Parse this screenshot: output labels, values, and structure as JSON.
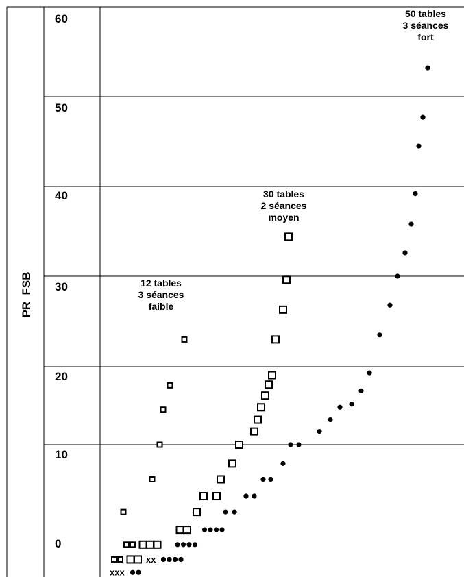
{
  "chart_data": {
    "type": "scatter",
    "ylabel": "PR  FSB",
    "y_ticks": [
      "0",
      "10",
      "20",
      "30",
      "40",
      "50",
      "60"
    ],
    "ylim": [
      -3,
      62
    ],
    "grid": true,
    "annotations": [
      {
        "lines": [
          "12 tables",
          "3 séances",
          "faible"
        ]
      },
      {
        "lines": [
          "30 tables",
          "2 séances",
          "moyen"
        ]
      },
      {
        "lines": [
          "50 tables",
          "3 séances",
          "fort"
        ]
      }
    ],
    "rows": [
      {
        "y": -2.6,
        "items": [
          {
            "kind": "text",
            "value": "xxx"
          },
          {
            "kind": "dot",
            "count": 2
          }
        ]
      },
      {
        "y": -1.3,
        "items": [
          {
            "kind": "small",
            "count": 2
          },
          {
            "kind": "square",
            "count": 2
          },
          {
            "kind": "text",
            "value": "xx"
          },
          {
            "kind": "dot",
            "count": 4
          }
        ]
      },
      {
        "y": 0.2,
        "items": [
          {
            "kind": "small",
            "count": 2
          },
          {
            "kind": "square",
            "count": 3
          },
          {
            "kind": "dot",
            "count": 4
          }
        ]
      },
      {
        "y": 1.7,
        "items": [
          {
            "kind": "square",
            "count": 2
          },
          {
            "kind": "dot",
            "count": 4
          }
        ]
      }
    ],
    "series": [
      {
        "marker": "small-square",
        "points": [
          [
            180,
            3.5
          ],
          [
            222,
            6.8
          ],
          [
            233,
            10.0
          ],
          [
            238,
            14.5
          ],
          [
            248,
            17.6
          ],
          [
            269,
            23.0
          ]
        ]
      },
      {
        "marker": "square",
        "points": [
          [
            287,
            3.5
          ],
          [
            297,
            5.1
          ],
          [
            316,
            5.1
          ],
          [
            322,
            6.8
          ],
          [
            339,
            8.4
          ],
          [
            349,
            10.0
          ],
          [
            371,
            11.7
          ],
          [
            376,
            13.2
          ],
          [
            381,
            14.8
          ],
          [
            387,
            16.3
          ],
          [
            392,
            17.7
          ],
          [
            397,
            18.9
          ],
          [
            402,
            23.0
          ],
          [
            413,
            26.3
          ],
          [
            418,
            29.6
          ],
          [
            421,
            34.4
          ]
        ]
      },
      {
        "marker": "dot",
        "points": [
          [
            329,
            3.5
          ],
          [
            342,
            3.5
          ],
          [
            359,
            5.1
          ],
          [
            371,
            5.1
          ],
          [
            384,
            6.8
          ],
          [
            395,
            6.8
          ],
          [
            413,
            8.4
          ],
          [
            424,
            10.0
          ],
          [
            436,
            10.0
          ],
          [
            466,
            11.7
          ],
          [
            482,
            13.2
          ],
          [
            496,
            14.8
          ],
          [
            513,
            15.2
          ],
          [
            527,
            16.9
          ],
          [
            539,
            19.2
          ],
          [
            554,
            23.5
          ],
          [
            569,
            26.8
          ],
          [
            580,
            30.0
          ],
          [
            591,
            32.6
          ],
          [
            600,
            35.8
          ],
          [
            606,
            39.2
          ],
          [
            611,
            44.5
          ],
          [
            617,
            47.7
          ],
          [
            624,
            53.2
          ]
        ]
      }
    ]
  }
}
